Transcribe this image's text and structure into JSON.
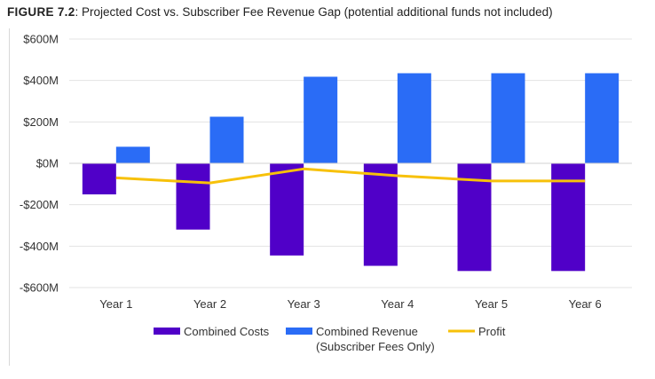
{
  "figure": {
    "label": "FIGURE 7.2",
    "caption": ": Projected Cost vs. Subscriber Fee Revenue Gap (potential additional funds not included)"
  },
  "chart_data": {
    "type": "bar",
    "categories": [
      "Year 1",
      "Year 2",
      "Year 3",
      "Year 4",
      "Year 5",
      "Year 6"
    ],
    "series": [
      {
        "name": "Combined Costs",
        "kind": "bar",
        "color": "#5000c8",
        "values": [
          -150,
          -320,
          -445,
          -495,
          -520,
          -520
        ]
      },
      {
        "name": "Combined Revenue (Subscriber Fees Only)",
        "name_lines": [
          "Combined Revenue",
          "(Subscriber Fees Only)"
        ],
        "kind": "bar",
        "color": "#2a6cf6",
        "values": [
          80,
          225,
          418,
          435,
          435,
          435
        ]
      },
      {
        "name": "Profit",
        "kind": "line",
        "color": "#f7c10a",
        "values": [
          -70,
          -95,
          -27,
          -60,
          -85,
          -85
        ]
      }
    ],
    "ylim": [
      -600,
      600
    ],
    "yticks": [
      {
        "value": 600,
        "label": "$600M"
      },
      {
        "value": 400,
        "label": "$400M"
      },
      {
        "value": 200,
        "label": "$200M"
      },
      {
        "value": 0,
        "label": "$0M"
      },
      {
        "value": -200,
        "label": "-$200M"
      },
      {
        "value": -400,
        "label": "-$400M"
      },
      {
        "value": -600,
        "label": "-$600M"
      }
    ],
    "grid": true,
    "legend_position": "bottom"
  }
}
